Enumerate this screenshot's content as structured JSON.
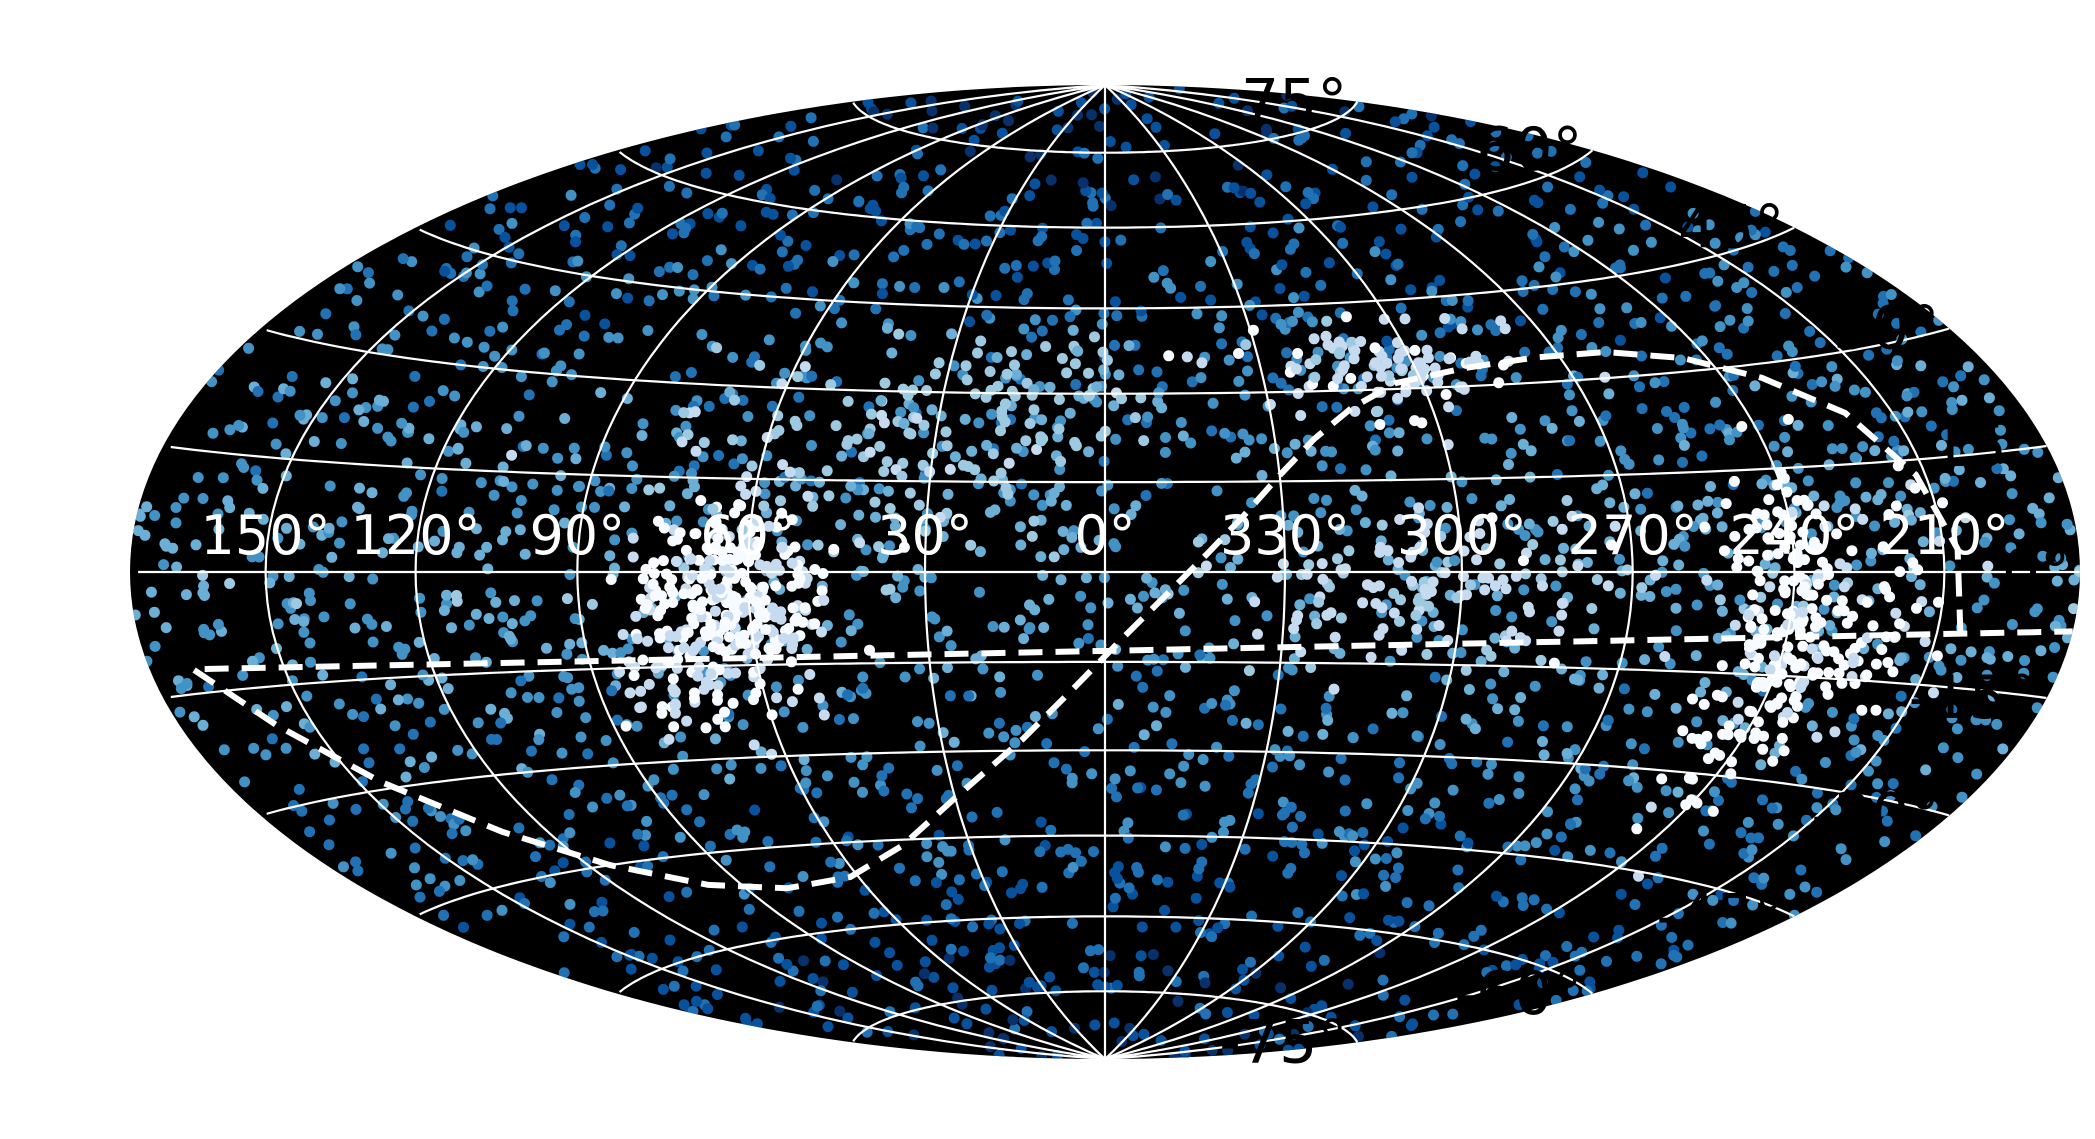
{
  "chart_data": {
    "type": "scatter",
    "projection": "hammer",
    "background": "#000000",
    "grid": true,
    "grid_color": "#ffffff",
    "lon_ticks": [
      150,
      120,
      90,
      60,
      30,
      0,
      330,
      300,
      270,
      240,
      210
    ],
    "lat_ticks": [
      75,
      60,
      45,
      30,
      15,
      0,
      -15,
      -30,
      -45,
      -60,
      -75
    ],
    "lon_tick_labels": [
      "150°",
      "120°",
      "90°",
      "60°",
      "30°",
      "0°",
      "330°",
      "300°",
      "270°",
      "240°",
      "210°"
    ],
    "lat_tick_labels": [
      "75°",
      "60°",
      "45°",
      "30°",
      "15°",
      "0°",
      "-15°",
      "-30°",
      "-45°",
      "-60°",
      "-75°"
    ],
    "colormap": [
      "#08306b",
      "#08519c",
      "#2171b5",
      "#4292c6",
      "#6baed6",
      "#9ecae1",
      "#c6dbef",
      "#f7fbff"
    ],
    "galactic_plane": {
      "style": "dashed",
      "color": "#ffffff",
      "points": [
        [
          205,
          -8
        ],
        [
          207,
          3
        ],
        [
          212,
          13
        ],
        [
          220,
          22
        ],
        [
          232,
          28
        ],
        [
          245,
          32
        ],
        [
          260,
          34
        ],
        [
          275,
          34
        ],
        [
          290,
          33
        ],
        [
          305,
          31
        ],
        [
          315,
          27
        ],
        [
          323,
          22
        ],
        [
          330,
          16
        ],
        [
          337,
          9
        ],
        [
          343,
          3
        ],
        [
          350,
          -4
        ],
        [
          357,
          -11
        ],
        [
          5,
          -19
        ],
        [
          15,
          -28
        ],
        [
          30,
          -38
        ],
        [
          45,
          -46
        ],
        [
          62,
          -51
        ],
        [
          80,
          -52
        ],
        [
          98,
          -50
        ],
        [
          115,
          -45
        ],
        [
          130,
          -38
        ],
        [
          145,
          -29
        ],
        [
          158,
          -20
        ],
        [
          170,
          -12
        ],
        [
          180,
          -7
        ]
      ]
    },
    "clusters": [
      {
        "lon": 62,
        "lat": -5,
        "count": 300,
        "spread_lon": 8,
        "spread_lat": 7,
        "brightness": 0.92
      },
      {
        "lon": 72,
        "lat": -18,
        "count": 60,
        "spread_lon": 9,
        "spread_lat": 5,
        "brightness": 0.85
      },
      {
        "lon": 240,
        "lat": -10,
        "count": 220,
        "spread_lon": 6,
        "spread_lat": 12,
        "brightness": 0.95
      },
      {
        "lon": 225,
        "lat": -5,
        "count": 80,
        "spread_lon": 8,
        "spread_lat": 8,
        "brightness": 0.9
      },
      {
        "lon": 300,
        "lat": -3,
        "count": 130,
        "spread_lon": 18,
        "spread_lat": 6,
        "brightness": 0.78
      },
      {
        "lon": 310,
        "lat": 34,
        "count": 110,
        "spread_lon": 14,
        "spread_lat": 4,
        "brightness": 0.82
      },
      {
        "lon": 40,
        "lat": 22,
        "count": 120,
        "spread_lon": 20,
        "spread_lat": 8,
        "brightness": 0.7
      },
      {
        "lon": 10,
        "lat": 30,
        "count": 60,
        "spread_lon": 10,
        "spread_lat": 6,
        "brightness": 0.65
      }
    ],
    "background_points": 2600,
    "seed": 7
  }
}
